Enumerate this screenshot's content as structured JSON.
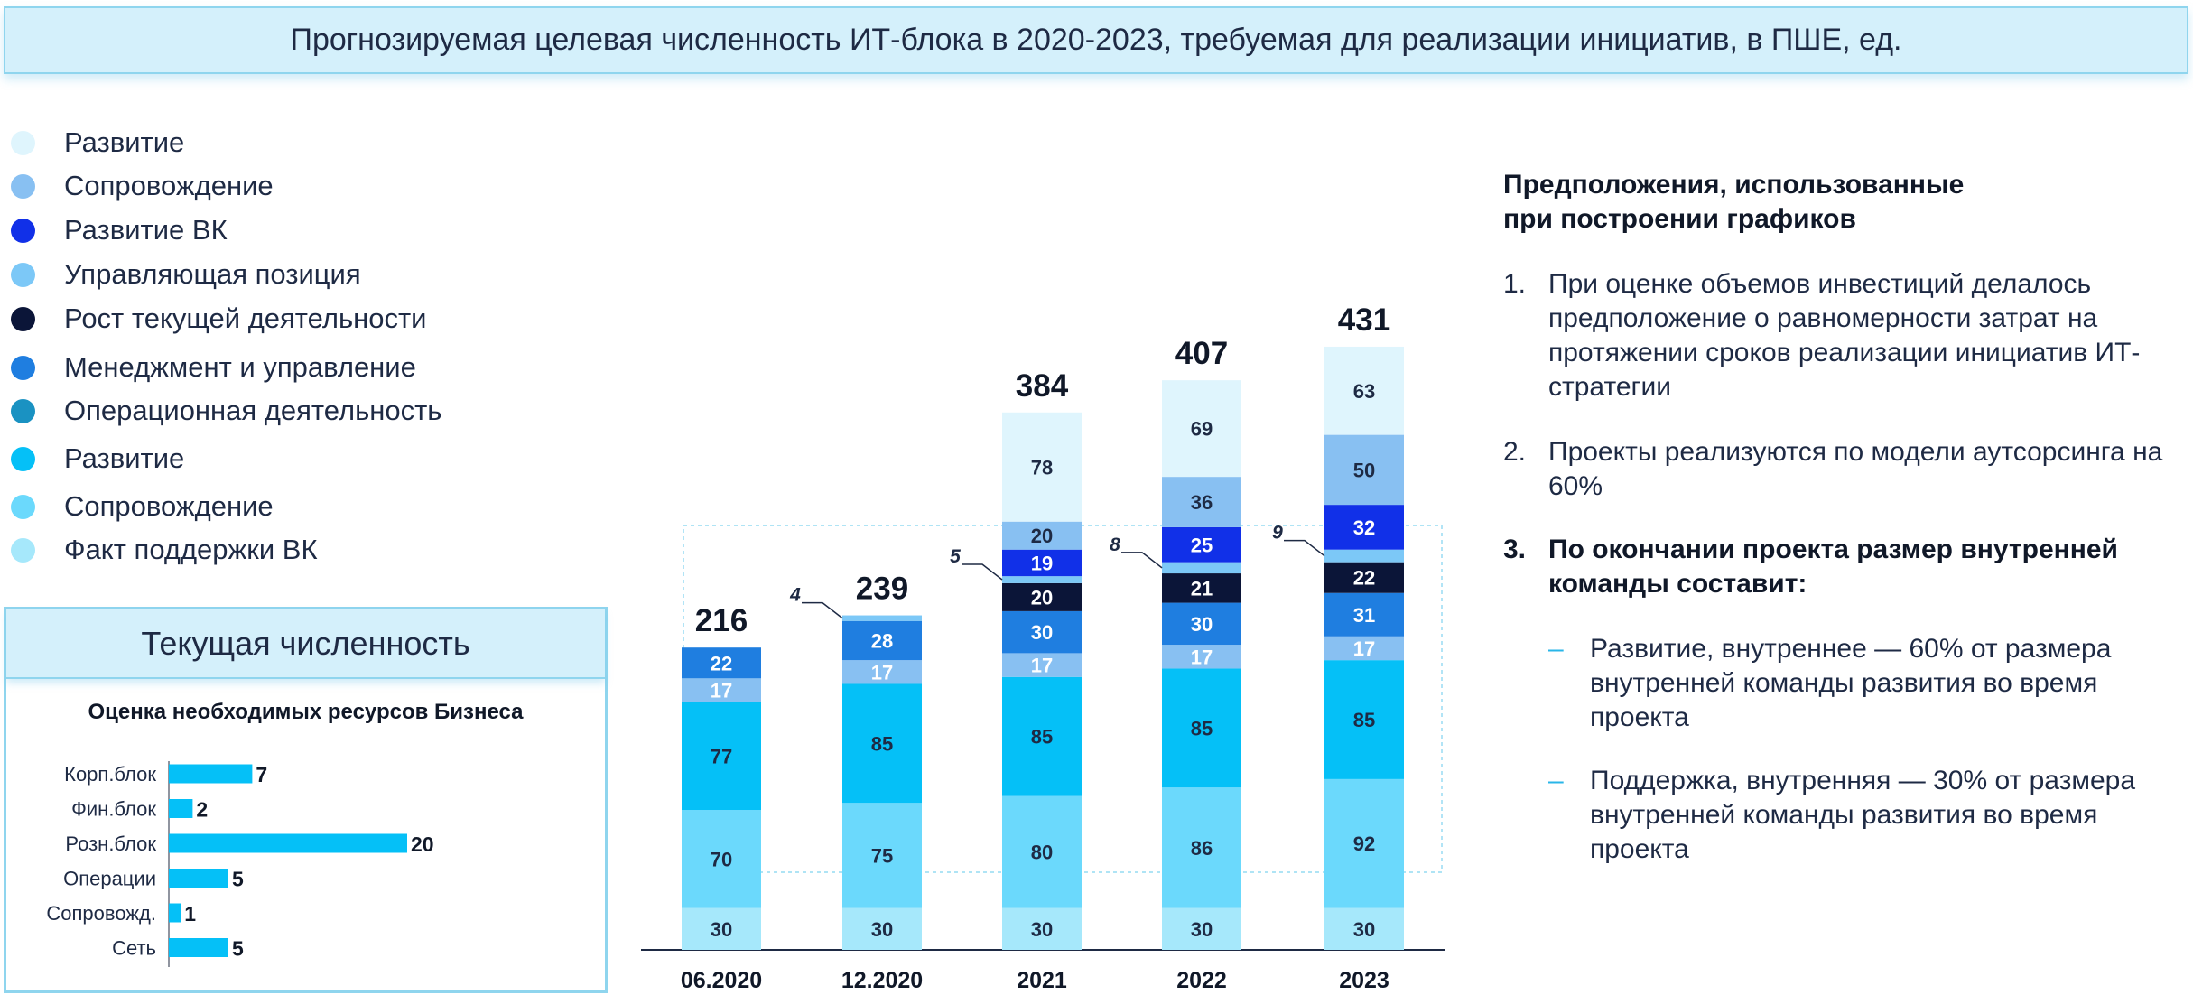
{
  "banner_title": "Прогнозируемая целевая численность ИТ-блока в 2020-2023, требуемая для реализации инициатив, в ПШЕ, ед.",
  "legend": [
    {
      "label": "Развитие",
      "color": "#dff5fd"
    },
    {
      "label": "Сопровождение",
      "color": "#88c0f2"
    },
    {
      "label": "Развитие ВК",
      "color": "#1130e8"
    },
    {
      "label": "Управляющая позиция",
      "color": "#7cc8f7"
    },
    {
      "label": "Рост текущей деятельности",
      "color": "#0b1538"
    },
    {
      "label": "Менеджмент и управление",
      "color": "#1f7ee0"
    },
    {
      "label": "Операционная деятельность",
      "color": "#1a92c2"
    },
    {
      "label": "Развитие",
      "color": "#05c0f7"
    },
    {
      "label": "Сопровождение",
      "color": "#6bd9fc"
    },
    {
      "label": "Факт поддержки ВК",
      "color": "#a6e8fb"
    }
  ],
  "current_panel": {
    "header": "Текущая численность",
    "title": "Оценка необходимых ресурсов Бизнеса"
  },
  "notes": {
    "title": "Предположения, использованные\nпри построении графиков",
    "items": [
      {
        "num": "1.",
        "text": "При оценке объемов инвестиций делалось предположение о равномерности затрат на протяжении сроков реализации инициатив ИТ-стратегии"
      },
      {
        "num": "2.",
        "text": "Проекты реализуются по модели аутсорсинга на 60%"
      },
      {
        "num": "3.",
        "text": "По окончании проекта размер внутренней команды составит:"
      }
    ],
    "sub_items": [
      {
        "dash": "–",
        "text": "Развитие, внутреннее — 60% от размера внутренней команды развития во время проекта"
      },
      {
        "dash": "–",
        "text": "Поддержка, внутренняя — 30% от размера внутренней команды развития во время проекта"
      }
    ]
  },
  "chart_data": [
    {
      "type": "bar",
      "stacked": true,
      "categories": [
        "06.2020",
        "12.2020",
        "2021",
        "2022",
        "2023"
      ],
      "totals": [
        216,
        239,
        384,
        407,
        431
      ],
      "series": [
        {
          "name": "Факт поддержки ВК",
          "color": "#a6e8fb",
          "values": [
            30,
            30,
            30,
            30,
            30
          ]
        },
        {
          "name": "Сопровождение",
          "color": "#6bd9fc",
          "values": [
            70,
            75,
            80,
            86,
            92
          ]
        },
        {
          "name": "Развитие",
          "color": "#05c0f7",
          "values": [
            77,
            85,
            85,
            85,
            85
          ]
        },
        {
          "name": "Операционная деятельность",
          "color": "#1a92c2",
          "values": [
            0,
            0,
            0,
            0,
            0
          ]
        },
        {
          "name": "Сопровождение",
          "color": "#88c0f2",
          "values": [
            17,
            17,
            17,
            17,
            17
          ]
        },
        {
          "name": "Менеджмент и управление",
          "color": "#1f7ee0",
          "values": [
            22,
            28,
            30,
            30,
            31
          ]
        },
        {
          "name": "Рост текущей деятельности",
          "color": "#0b1538",
          "values": [
            0,
            0,
            20,
            21,
            22
          ]
        },
        {
          "name": "Управляющая позиция",
          "color": "#7cc8f7",
          "values": [
            0,
            4,
            5,
            8,
            9
          ]
        },
        {
          "name": "Развитие ВК",
          "color": "#1130e8",
          "values": [
            0,
            0,
            19,
            25,
            32
          ]
        },
        {
          "name": "Сопровождение",
          "color": "#88c0f2",
          "values": [
            0,
            0,
            20,
            36,
            50
          ]
        },
        {
          "name": "Развитие",
          "color": "#dff5fd",
          "values": [
            0,
            0,
            78,
            69,
            63
          ]
        }
      ],
      "callout_series_index": 7,
      "label_colors": [
        "#1e2a44",
        "#1e2a44",
        "#1e2a44",
        "#ffffff",
        "#ffffff",
        "#ffffff",
        "#ffffff",
        "#1e2a44",
        "#ffffff",
        "#1e2a44",
        "#1e2a44"
      ]
    },
    {
      "type": "bar",
      "orientation": "horizontal",
      "title": "Оценка необходимых ресурсов Бизнеса",
      "categories": [
        "Корп.блок",
        "Фин.блок",
        "Розн.блок",
        "Операции",
        "Сопровожд.",
        "Сеть"
      ],
      "values": [
        7,
        2,
        20,
        5,
        1,
        5
      ],
      "color": "#05c0f7"
    }
  ]
}
